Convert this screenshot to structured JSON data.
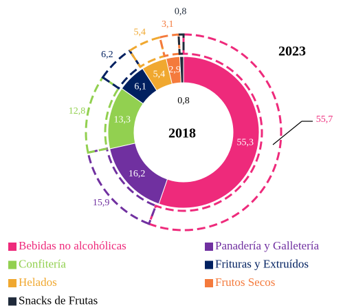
{
  "chart_data": {
    "type": "donut",
    "categories": [
      "Bebidas no alcohólicas",
      "Panadería y Galletería",
      "Confitería",
      "Frituras y Extruídos",
      "Helados",
      "Frutos Secos",
      "Snacks de Frutas"
    ],
    "colors": [
      "#ee2a7b",
      "#7030a0",
      "#92d050",
      "#002060",
      "#f0a830",
      "#f47a3c",
      "#1f2a3a"
    ],
    "series": [
      {
        "name": "2018",
        "values": [
          55.3,
          16.2,
          13.3,
          6.1,
          5.4,
          2.9,
          0.8
        ],
        "value_labels": [
          "55,3",
          "16,2",
          "13,3",
          "6,1",
          "5,4",
          "2,9",
          "0,8"
        ]
      },
      {
        "name": "2023",
        "values": [
          55.7,
          15.9,
          12.8,
          6.2,
          5.4,
          3.1,
          0.8
        ],
        "value_labels": [
          "55,7",
          "15,9",
          "12,8",
          "6,2",
          "5,4",
          "3,1",
          "0,8"
        ]
      }
    ]
  }
}
